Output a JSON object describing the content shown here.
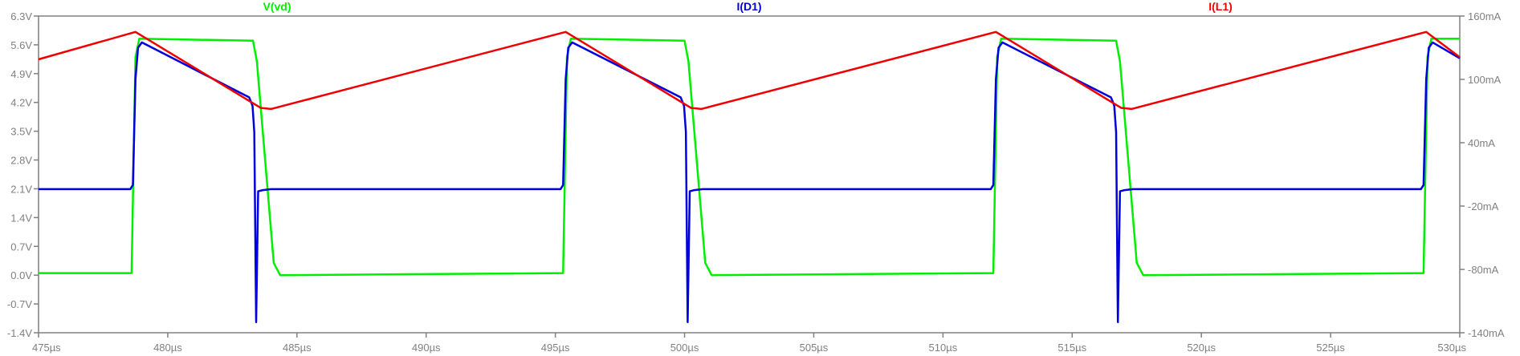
{
  "chart_data": {
    "type": "line",
    "title": "",
    "xlabel": "",
    "ylabel": "",
    "xlim": [
      475,
      530
    ],
    "x_unit": "µs",
    "x_ticks": [
      "475µs",
      "480µs",
      "485µs",
      "490µs",
      "495µs",
      "500µs",
      "505µs",
      "510µs",
      "515µs",
      "520µs",
      "525µs",
      "530µs"
    ],
    "ylim_left": [
      -1.4,
      6.3
    ],
    "y_left_ticks": [
      "6.3V",
      "5.6V",
      "4.9V",
      "4.2V",
      "3.5V",
      "2.8V",
      "2.1V",
      "1.4V",
      "0.7V",
      "0.0V",
      "-0.7V",
      "-1.4V"
    ],
    "ylim_right": [
      -140,
      160
    ],
    "y_right_ticks": [
      "160mA",
      "100mA",
      "40mA",
      "-20mA",
      "-80mA",
      "-140mA"
    ],
    "grid": false,
    "legend_placement": "top",
    "series": [
      {
        "name": "V(vd)",
        "color": "#00ee00",
        "axis": "left",
        "unit": "V",
        "x": [
          475.0,
          478.6,
          478.75,
          478.9,
          483.3,
          483.45,
          484.1,
          484.35,
          495.3,
          495.45,
          495.6,
          500.0,
          500.15,
          500.8,
          501.05,
          511.95,
          512.1,
          512.25,
          516.7,
          516.85,
          517.5,
          517.75,
          528.6,
          528.75,
          528.9,
          530.0
        ],
        "y": [
          0.05,
          0.05,
          5.3,
          5.75,
          5.7,
          5.2,
          0.3,
          0.0,
          0.05,
          5.3,
          5.75,
          5.7,
          5.2,
          0.3,
          0.0,
          0.05,
          5.3,
          5.75,
          5.7,
          5.2,
          0.3,
          0.0,
          0.05,
          5.3,
          5.75,
          5.75
        ]
      },
      {
        "name": "I(D1)",
        "color": "#0000dd",
        "axis": "right",
        "unit": "mA",
        "x": [
          475.0,
          478.55,
          478.65,
          478.75,
          478.85,
          479.0,
          483.15,
          483.2,
          483.28,
          483.35,
          483.42,
          483.5,
          483.65,
          484.0,
          495.2,
          495.3,
          495.4,
          495.5,
          495.65,
          499.85,
          499.9,
          499.98,
          500.05,
          500.12,
          500.2,
          500.35,
          500.7,
          511.85,
          511.95,
          512.05,
          512.15,
          512.3,
          516.5,
          516.55,
          516.63,
          516.7,
          516.77,
          516.85,
          517.0,
          517.35,
          528.5,
          528.6,
          528.7,
          528.8,
          528.95,
          530.0
        ],
        "y": [
          -4,
          -4,
          0,
          100,
          130,
          135,
          83,
          80,
          75,
          50,
          -130,
          -6,
          -5,
          -4,
          -4,
          0,
          100,
          130,
          135,
          83,
          80,
          75,
          50,
          -130,
          -6,
          -5,
          -4,
          -4,
          0,
          100,
          130,
          135,
          83,
          80,
          75,
          50,
          -130,
          -6,
          -5,
          -4,
          -4,
          0,
          100,
          130,
          135,
          120
        ]
      },
      {
        "name": "I(L1)",
        "color": "#ee0000",
        "axis": "right",
        "unit": "mA",
        "x": [
          475.0,
          478.75,
          483.6,
          484.0,
          495.4,
          500.25,
          500.65,
          512.05,
          516.9,
          517.3,
          528.7,
          530.0
        ],
        "y": [
          119,
          145,
          73,
          72,
          145,
          73,
          72,
          145,
          73,
          72,
          145,
          121
        ]
      }
    ]
  }
}
